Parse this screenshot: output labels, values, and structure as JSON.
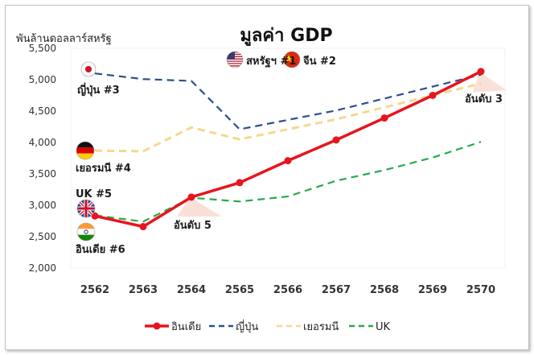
{
  "chart_data": {
    "type": "line",
    "title": "มูลค่า GDP",
    "ylabel": "พันล้านดอลลาร์สหรัฐ",
    "xlabel": "",
    "categories": [
      "2562",
      "2563",
      "2564",
      "2565",
      "2566",
      "2567",
      "2568",
      "2569",
      "2570"
    ],
    "ylim": [
      2000,
      5500
    ],
    "yticks": [
      "2,000",
      "2,500",
      "3,000",
      "3,500",
      "4,000",
      "4,500",
      "5,000",
      "5,500"
    ],
    "grid": false,
    "legend": "bottom",
    "series": [
      {
        "name": "อินเดีย",
        "values": [
          2830,
          2660,
          3130,
          3360,
          3710,
          4040,
          4390,
          4750,
          5130
        ],
        "color": "#e8141e",
        "style": "solid-markers"
      },
      {
        "name": "ญี่ปุ่น",
        "values": [
          5100,
          5010,
          4980,
          4210,
          null,
          4510,
          null,
          null,
          5080
        ],
        "color": "#2e4f8f",
        "style": "dash"
      },
      {
        "name": "เยอรมนี",
        "values": [
          3870,
          3860,
          4240,
          4050,
          null,
          4370,
          null,
          null,
          4940
        ],
        "color": "#f5d88f",
        "style": "dash"
      },
      {
        "name": "UK",
        "values": [
          2840,
          2740,
          3120,
          3060,
          3140,
          3390,
          3560,
          3760,
          4010
        ],
        "color": "#2aa94a",
        "style": "dash"
      }
    ],
    "annotations": {
      "us": "สหรัฐฯ #1",
      "china": "จีน #2",
      "japan": "ญี่ปุ่น #3",
      "germany": "เยอรมนี #4",
      "uk": "UK #5",
      "india": "อินเดีย #6",
      "rank5": "อันดับ  5",
      "rank3": "อันดับ 3"
    }
  }
}
